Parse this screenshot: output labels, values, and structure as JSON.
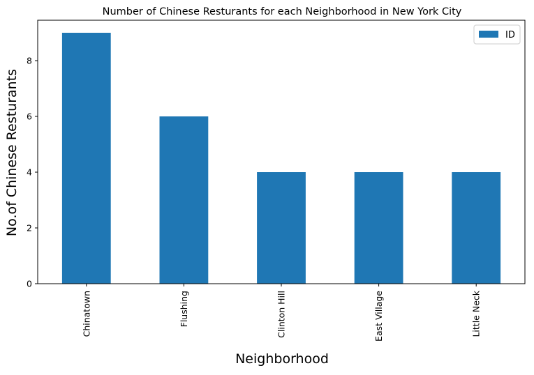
{
  "chart_data": {
    "type": "bar",
    "title": "Number of Chinese Resturants for each Neighborhood in New York City",
    "xlabel": "Neighborhood",
    "ylabel": "No.of Chinese Resturants",
    "categories": [
      "Chinatown",
      "Flushing",
      "Clinton Hill",
      "East Village",
      "Little Neck"
    ],
    "series": [
      {
        "name": "ID",
        "values": [
          9,
          6,
          4,
          4,
          4
        ],
        "color": "#1f77b4"
      }
    ],
    "ylim": [
      0,
      9.45
    ],
    "yticks": [
      0,
      2,
      4,
      6,
      8
    ],
    "grid": false,
    "legend": "top-right"
  }
}
